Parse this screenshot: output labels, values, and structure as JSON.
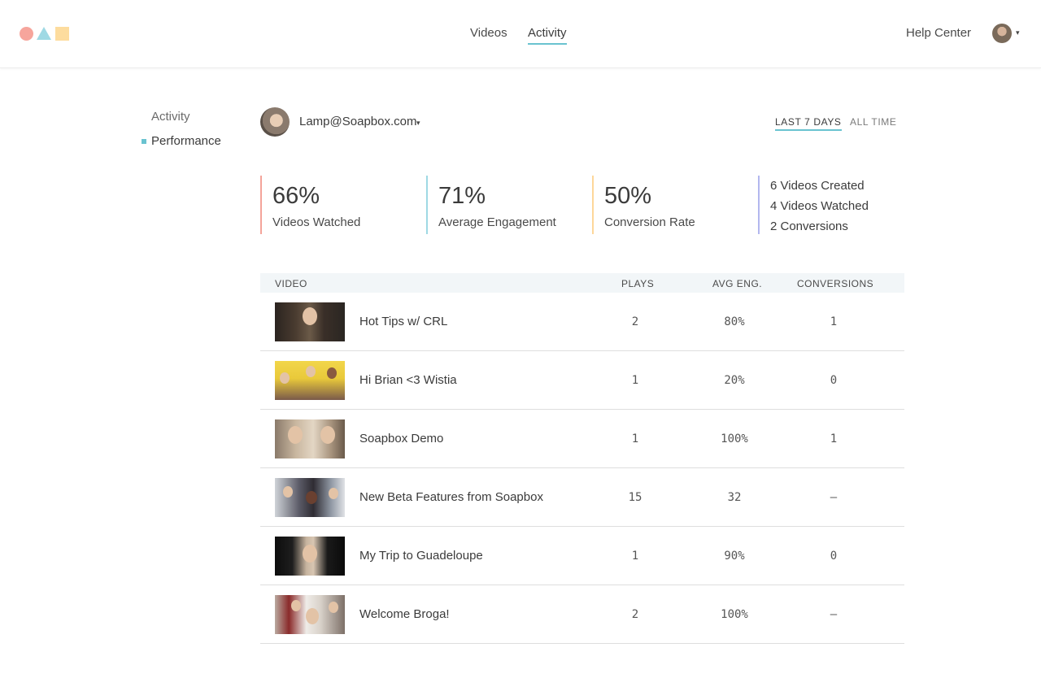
{
  "nav": {
    "videos": "Videos",
    "activity": "Activity",
    "help": "Help Center",
    "user_caret": "▾"
  },
  "sidebar": {
    "items": [
      {
        "label": "Activity"
      },
      {
        "label": "Performance"
      }
    ]
  },
  "account": {
    "email": "Lamp@Soapbox.com",
    "caret": "▾"
  },
  "range": {
    "last7": "LAST 7 DAYS",
    "all": "ALL TIME"
  },
  "stats": [
    {
      "value": "66%",
      "label": "Videos Watched"
    },
    {
      "value": "71%",
      "label": "Average Engagement"
    },
    {
      "value": "50%",
      "label": "Conversion Rate"
    }
  ],
  "summary": [
    "6 Videos Created",
    "4 Videos Watched",
    "2 Conversions"
  ],
  "table": {
    "headers": {
      "video": "VIDEO",
      "plays": "PLAYS",
      "eng": "AVG ENG.",
      "conv": "CONVERSIONS"
    },
    "rows": [
      {
        "title": "Hot Tips w/ CRL",
        "plays": "2",
        "eng": "80%",
        "conv": "1"
      },
      {
        "title": "Hi Brian <3 Wistia",
        "plays": "1",
        "eng": "20%",
        "conv": "0"
      },
      {
        "title": "Soapbox Demo",
        "plays": "1",
        "eng": "100%",
        "conv": "1"
      },
      {
        "title": "New Beta Features from Soapbox",
        "plays": "15",
        "eng": "32",
        "conv": "–"
      },
      {
        "title": "My Trip to Guadeloupe",
        "plays": "1",
        "eng": "90%",
        "conv": "0"
      },
      {
        "title": "Welcome Broga!",
        "plays": "2",
        "eng": "100%",
        "conv": "–"
      }
    ]
  },
  "colors": {
    "accent": "#6ac3d0",
    "logo_circle": "#f6a59c",
    "logo_triangle": "#9fd9e4",
    "logo_square": "#fddc9e",
    "stat_red": "#f4a49a",
    "stat_blue": "#9fd9e4",
    "stat_yellow": "#fdd79a",
    "stat_purple": "#b3b7ef"
  }
}
